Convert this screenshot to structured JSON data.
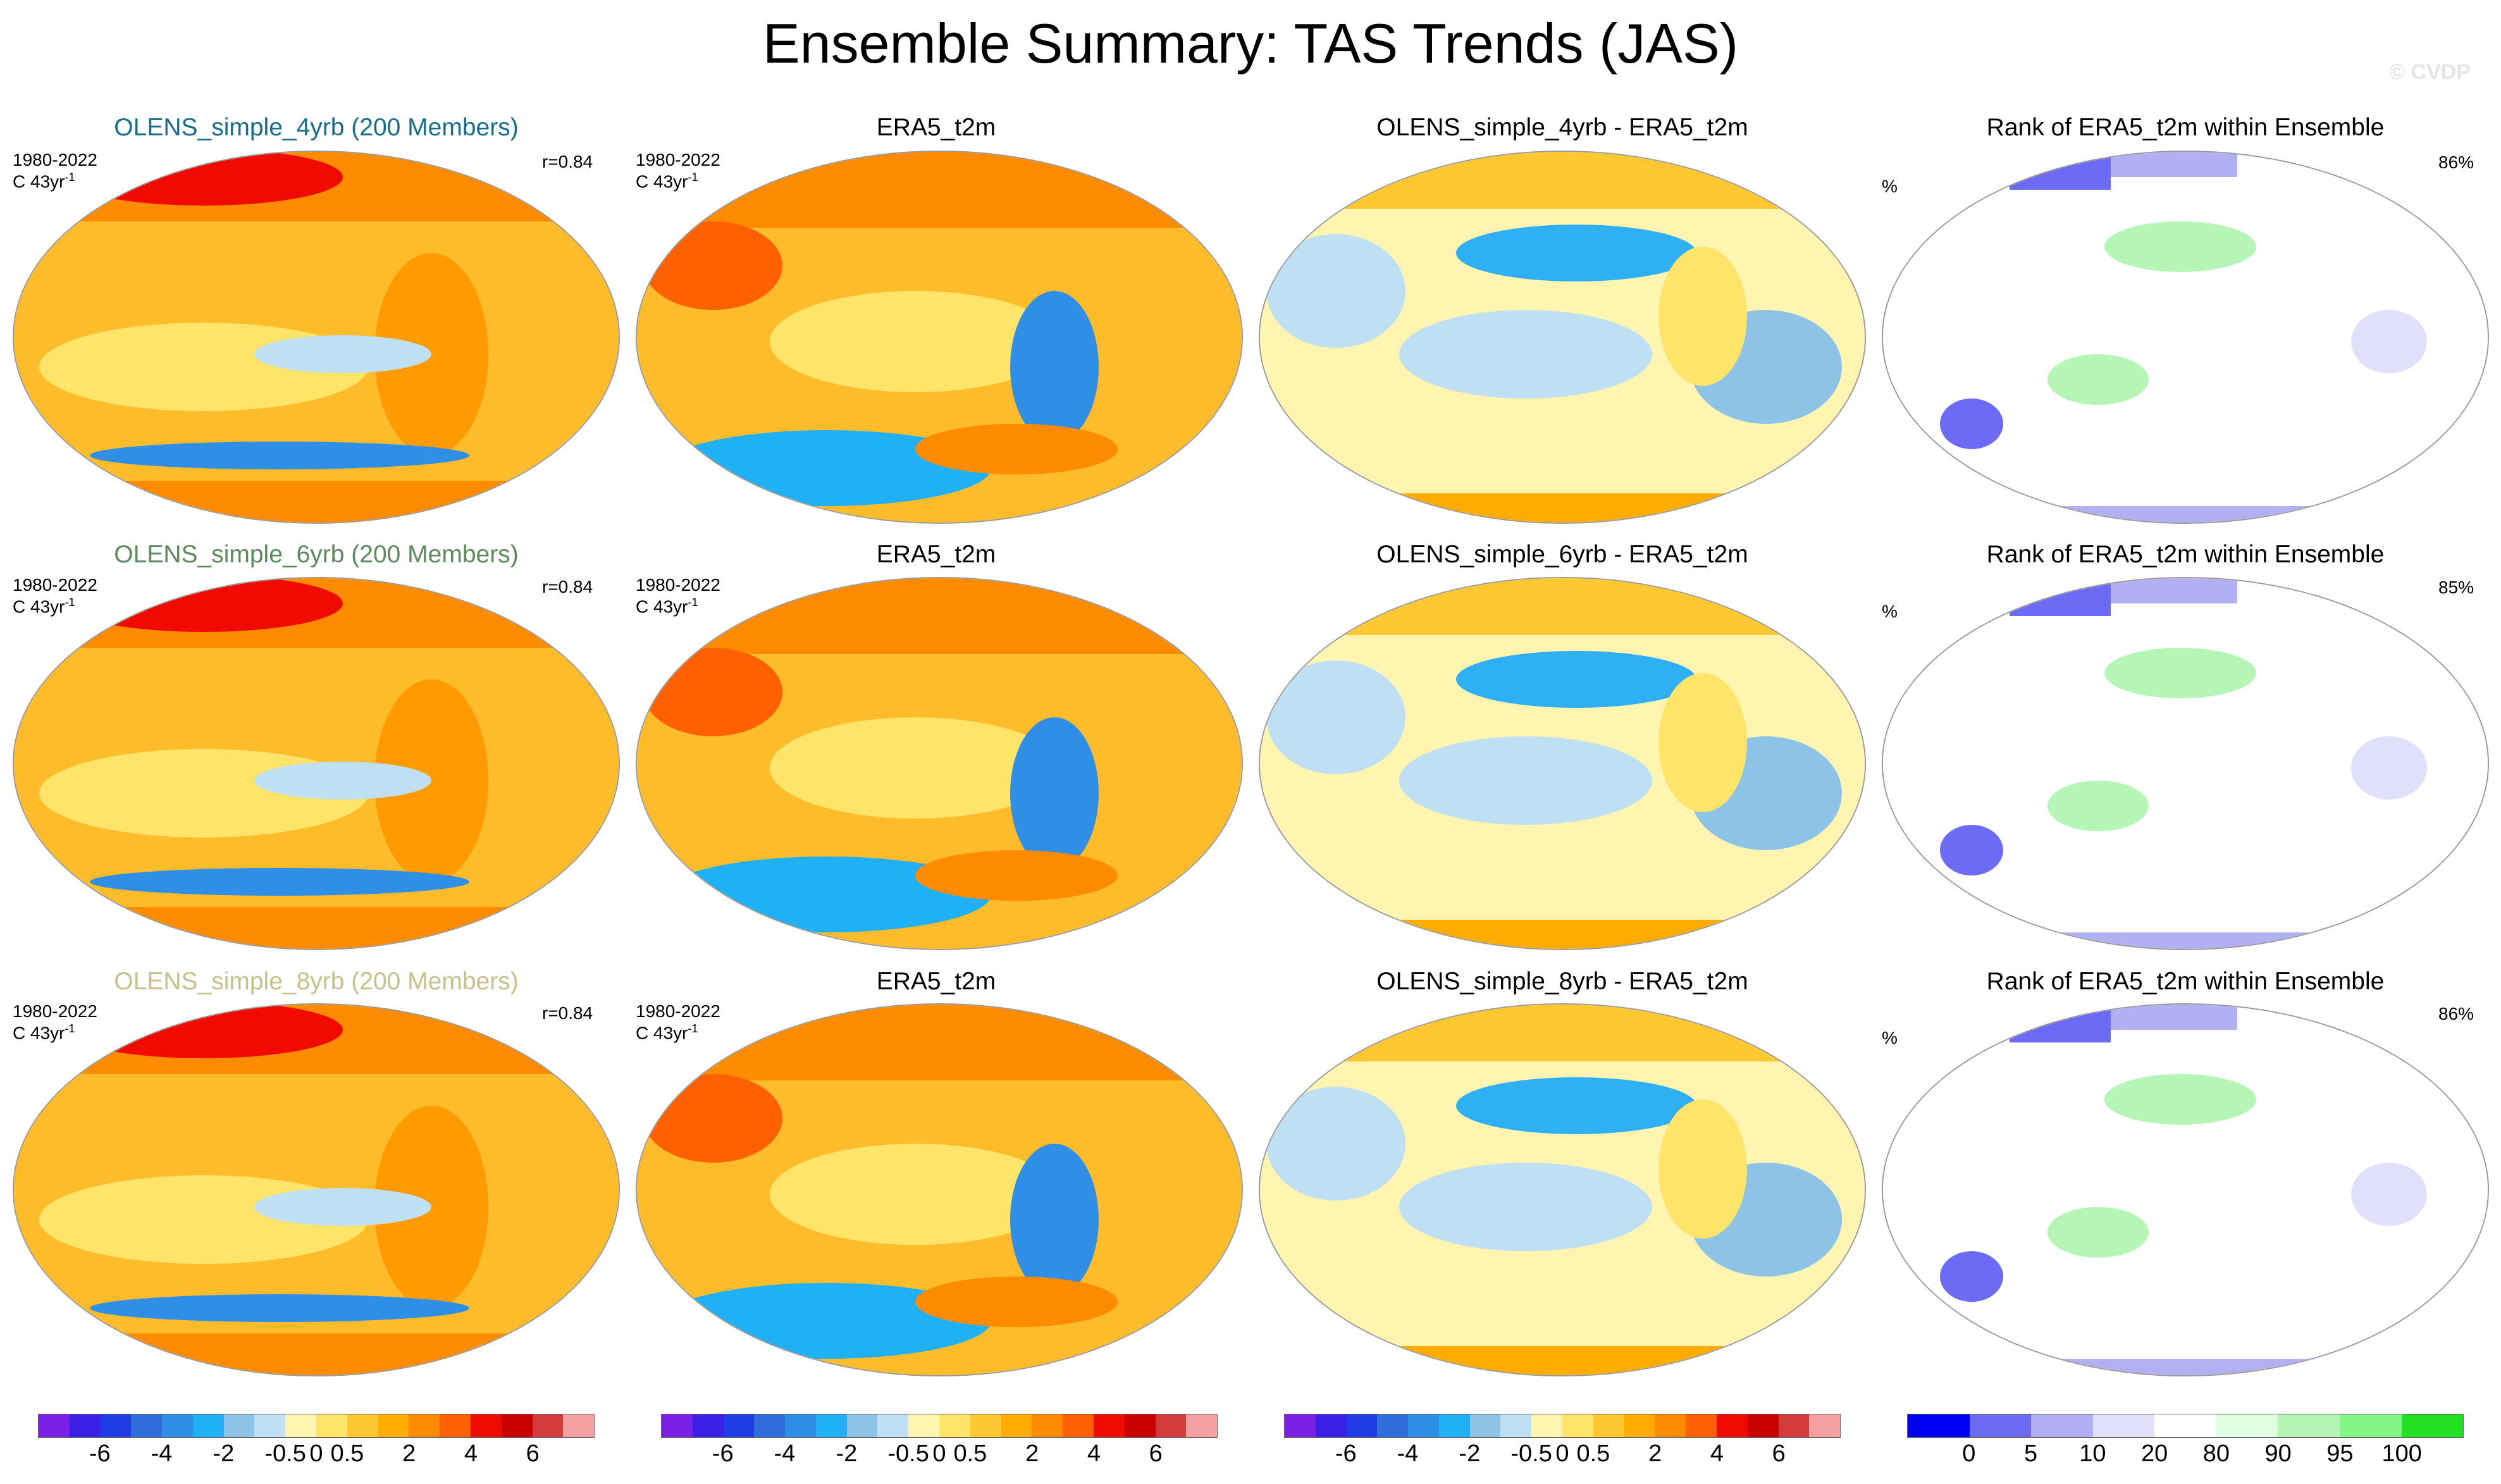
{
  "title": "Ensemble Summary: TAS Trends (JAS)",
  "watermark": "© CVDP",
  "colors": {
    "model_title": [
      "#176e8c",
      "#5d8a5d",
      "#c7c08a"
    ],
    "trend_scale": [
      "#7a1fe6",
      "#3a1fe6",
      "#1f3ce6",
      "#2f6edb",
      "#2f8ee6",
      "#1fb0f5",
      "#8cc3e6",
      "#bfe0f2",
      "#fff4b0",
      "#ffe46a",
      "#ffc830",
      "#ffab00",
      "#ff8c00",
      "#ff6000",
      "#f00a00",
      "#c80000",
      "#d23c3c",
      "#f5a0a0"
    ],
    "rank_scale": [
      "#0000f0",
      "#6b6bf5",
      "#b0b0f2",
      "#e0e0fa",
      "#ffffff",
      "#e0ffe0",
      "#b5f5b5",
      "#85f585",
      "#22e022"
    ]
  },
  "rows": [
    {
      "panels": [
        {
          "title": "OLENS_simple_4yrb (200 Members)",
          "period": "1980-2022",
          "units": "C 43yr",
          "units_sup": "-1",
          "stat": "r=0.84"
        },
        {
          "title": "ERA5_t2m",
          "period": "1980-2022",
          "units": "C 43yr",
          "units_sup": "-1"
        },
        {
          "title": "OLENS_simple_4yrb - ERA5_t2m"
        },
        {
          "title": "Rank of ERA5_t2m within Ensemble",
          "left_label": "%",
          "right_label": "86%"
        }
      ]
    },
    {
      "panels": [
        {
          "title": "OLENS_simple_6yrb (200 Members)",
          "period": "1980-2022",
          "units": "C 43yr",
          "units_sup": "-1",
          "stat": "r=0.84"
        },
        {
          "title": "ERA5_t2m",
          "period": "1980-2022",
          "units": "C 43yr",
          "units_sup": "-1"
        },
        {
          "title": "OLENS_simple_6yrb - ERA5_t2m"
        },
        {
          "title": "Rank of ERA5_t2m within Ensemble",
          "left_label": "%",
          "right_label": "85%"
        }
      ]
    },
    {
      "panels": [
        {
          "title": "OLENS_simple_8yrb (200 Members)",
          "period": "1980-2022",
          "units": "C 43yr",
          "units_sup": "-1",
          "stat": "r=0.84"
        },
        {
          "title": "ERA5_t2m",
          "period": "1980-2022",
          "units": "C 43yr",
          "units_sup": "-1"
        },
        {
          "title": "OLENS_simple_8yrb - ERA5_t2m"
        },
        {
          "title": "Rank of ERA5_t2m within Ensemble",
          "left_label": "%",
          "right_label": "86%"
        }
      ]
    }
  ],
  "colorbars": {
    "trend_ticks": [
      "-6",
      "-4",
      "-2",
      "-0.5",
      "0",
      "0.5",
      "2",
      "4",
      "6"
    ],
    "rank_ticks": [
      "0",
      "5",
      "10",
      "20",
      "80",
      "90",
      "95",
      "100"
    ]
  }
}
